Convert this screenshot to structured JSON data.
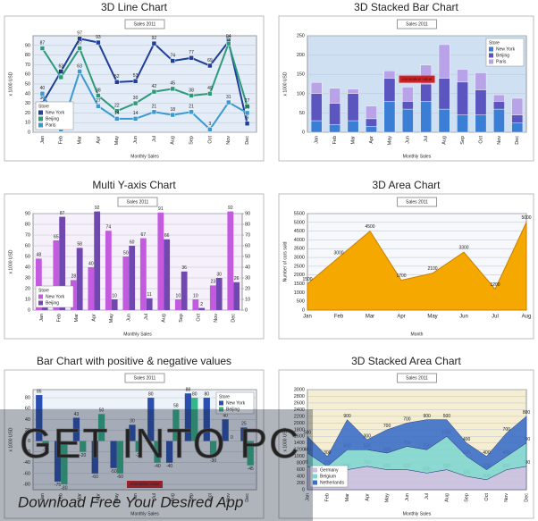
{
  "chart_data": [
    {
      "type": "line",
      "title": "3D Line Chart",
      "subtitle": "Sales 2011",
      "x_label": "Monthly Sales",
      "y_label": "x 1000 USD",
      "categories": [
        "Jan",
        "Feb",
        "Mar",
        "Apr",
        "May",
        "Jun",
        "Jul",
        "Aug",
        "Sep",
        "Oct",
        "Nov",
        "Dec"
      ],
      "series": [
        {
          "name": "New York",
          "color": "#1f3f99",
          "values": [
            30,
            63,
            97,
            93,
            52,
            53,
            92,
            74,
            77,
            69,
            94,
            9
          ]
        },
        {
          "name": "Beijing",
          "color": "#2e9a7a",
          "values": [
            87,
            57,
            87,
            38,
            22,
            30,
            42,
            45,
            38,
            40,
            92,
            27
          ]
        },
        {
          "name": "Paris",
          "color": "#3a9ad0",
          "values": [
            40,
            3,
            63,
            27,
            14,
            14,
            21,
            18,
            21,
            3,
            31,
            20
          ]
        }
      ],
      "ylim": [
        0,
        100
      ],
      "yticks": [
        0,
        10,
        20,
        30,
        40,
        50,
        60,
        70,
        80,
        90
      ],
      "grid": true,
      "legend": "bottom-left",
      "legend_title": "Store",
      "plot_color": "#e3ecf7",
      "data_labels": true
    },
    {
      "type": "bar",
      "stacked": true,
      "title": "3D Stacked Bar Chart",
      "subtitle": "Sales 2011",
      "x_label": "Monthly Sales",
      "y_label": "x 1000 USD",
      "categories": [
        "Jan",
        "Feb",
        "Mar",
        "Apr",
        "May",
        "Jun",
        "Jul",
        "Aug",
        "Sep",
        "Oct",
        "Nov",
        "Dec"
      ],
      "series": [
        {
          "name": "New York",
          "color": "#3a7fd5",
          "values": [
            30,
            20,
            30,
            15,
            80,
            60,
            80,
            60,
            45,
            45,
            60,
            25
          ]
        },
        {
          "name": "Beijing",
          "color": "#5b55c0",
          "values": [
            70,
            55,
            70,
            20,
            60,
            20,
            45,
            80,
            85,
            65,
            20,
            20
          ]
        },
        {
          "name": "Paris",
          "color": "#b9a3e8",
          "values": [
            29,
            39,
            12,
            33,
            19,
            37,
            49,
            87,
            33,
            44,
            17,
            43
          ]
        }
      ],
      "ylim": [
        0,
        250
      ],
      "yticks": [
        0,
        50,
        100,
        150,
        200,
        250
      ],
      "grid": true,
      "legend": "top-right",
      "legend_title": "Store",
      "plot_color": "#cfe0f2",
      "annotation": "Annotation value"
    },
    {
      "type": "bar",
      "title": "Multi Y-axis Chart",
      "subtitle": "Sales 2011",
      "x_label": "Monthly Sales",
      "y_label": "x 1000 USD",
      "categories": [
        "Jan",
        "Feb",
        "Mar",
        "Apr",
        "May",
        "Jun",
        "Jul",
        "Aug",
        "Sep",
        "Oct",
        "Nov",
        "Dec"
      ],
      "series": [
        {
          "name": "New York",
          "color": "#c45ae0",
          "values": [
            48,
            65,
            28,
            40,
            74,
            50,
            67,
            91,
            10,
            10,
            23,
            92
          ]
        },
        {
          "name": "Beijing",
          "color": "#7048b0",
          "axis": "y2",
          "values": [
            8,
            87,
            58,
            92,
            10,
            60,
            11,
            66,
            36,
            2,
            30,
            26
          ]
        }
      ],
      "ylim": [
        0,
        90
      ],
      "yticks": [
        0,
        10,
        20,
        30,
        40,
        50,
        60,
        70,
        80,
        90
      ],
      "y2lim": [
        0,
        90
      ],
      "y2ticks": [
        0,
        10,
        20,
        30,
        40,
        50,
        60,
        70,
        80,
        90
      ],
      "grid": true,
      "legend": "bottom-left",
      "legend_title": "Store",
      "plot_color": "#f6f0fa",
      "data_labels": true
    },
    {
      "type": "area",
      "title": "3D Area Chart",
      "subtitle": "Sales 2011",
      "x_label": "Month",
      "y_label": "Number of cars sold",
      "categories": [
        "Jan",
        "Feb",
        "Mar",
        "Apr",
        "May",
        "Jun",
        "Jul",
        "Aug"
      ],
      "values": [
        1500,
        3000,
        4500,
        1700,
        2100,
        3300,
        1200,
        5000
      ],
      "color": "#f5a800",
      "ylim": [
        0,
        5500
      ],
      "yticks": [
        0,
        500,
        1000,
        1500,
        2000,
        2500,
        3000,
        3500,
        4000,
        4500,
        5000,
        5500
      ],
      "grid": true,
      "plot_color": "#f7f8fc",
      "data_labels": true
    },
    {
      "type": "bar",
      "title": "Bar Chart with positive & negative values",
      "subtitle": "Sales 2011",
      "x_label": "Monthly Sales",
      "y_label": "x 1000 USD",
      "categories": [
        "Jan",
        "Feb",
        "Mar",
        "Apr",
        "May",
        "Jun",
        "Jul",
        "Aug",
        "Sep",
        "Oct",
        "Nov",
        "Dec"
      ],
      "series": [
        {
          "name": "New York",
          "color": "#2a4fb0",
          "values": [
            85,
            -75,
            43,
            -60,
            -50,
            30,
            80,
            -40,
            88,
            80,
            40,
            25
          ]
        },
        {
          "name": "Beijing",
          "color": "#35b58a",
          "values": [
            -10,
            -80,
            -20,
            50,
            -60,
            -20,
            -40,
            58,
            80,
            -30,
            0,
            -45
          ]
        }
      ],
      "ylim": [
        -90,
        95
      ],
      "yticks": [
        -80,
        -60,
        -40,
        -20,
        0,
        20,
        40,
        60,
        80
      ],
      "grid": true,
      "legend": "top-right",
      "legend_title": "Store",
      "plot_color": "#eef3f9",
      "annotation": "Annotation value",
      "data_labels": true
    },
    {
      "type": "area",
      "stacked": true,
      "title": "3D Stacked Area Chart",
      "subtitle": "Sales 2011",
      "x_label": "Monthly Sales",
      "y_label": "x 1000 USD",
      "categories": [
        "Jan",
        "Feb",
        "Mar",
        "Apr",
        "May",
        "Jun",
        "Jul",
        "Aug",
        "Sep",
        "Oct",
        "Nov",
        "Dec"
      ],
      "series": [
        {
          "name": "Germany",
          "color": "#c9bfe0",
          "values": [
            700,
            500,
            600,
            700,
            600,
            600,
            500,
            600,
            400,
            300,
            600,
            700
          ]
        },
        {
          "name": "Belgium",
          "color": "#7fd6cf",
          "values": [
            400,
            200,
            600,
            500,
            500,
            700,
            700,
            1000,
            600,
            300,
            400,
            700
          ]
        },
        {
          "name": "Netherlands",
          "color": "#3d6fc6",
          "values": [
            500,
            300,
            900,
            300,
            700,
            700,
            900,
            500,
            400,
            400,
            700,
            800
          ]
        }
      ],
      "ylim": [
        0,
        3000
      ],
      "yticks": [
        0,
        200,
        400,
        600,
        800,
        1000,
        1200,
        1400,
        1600,
        1800,
        2000,
        2200,
        2400,
        2600,
        2800,
        3000
      ],
      "grid": true,
      "legend": "bottom-left",
      "plot_color": "#f5eed2",
      "data_labels": true
    }
  ],
  "watermark": {
    "title": "GET INTO PC",
    "subtitle": "Download Free Your Desired App"
  }
}
